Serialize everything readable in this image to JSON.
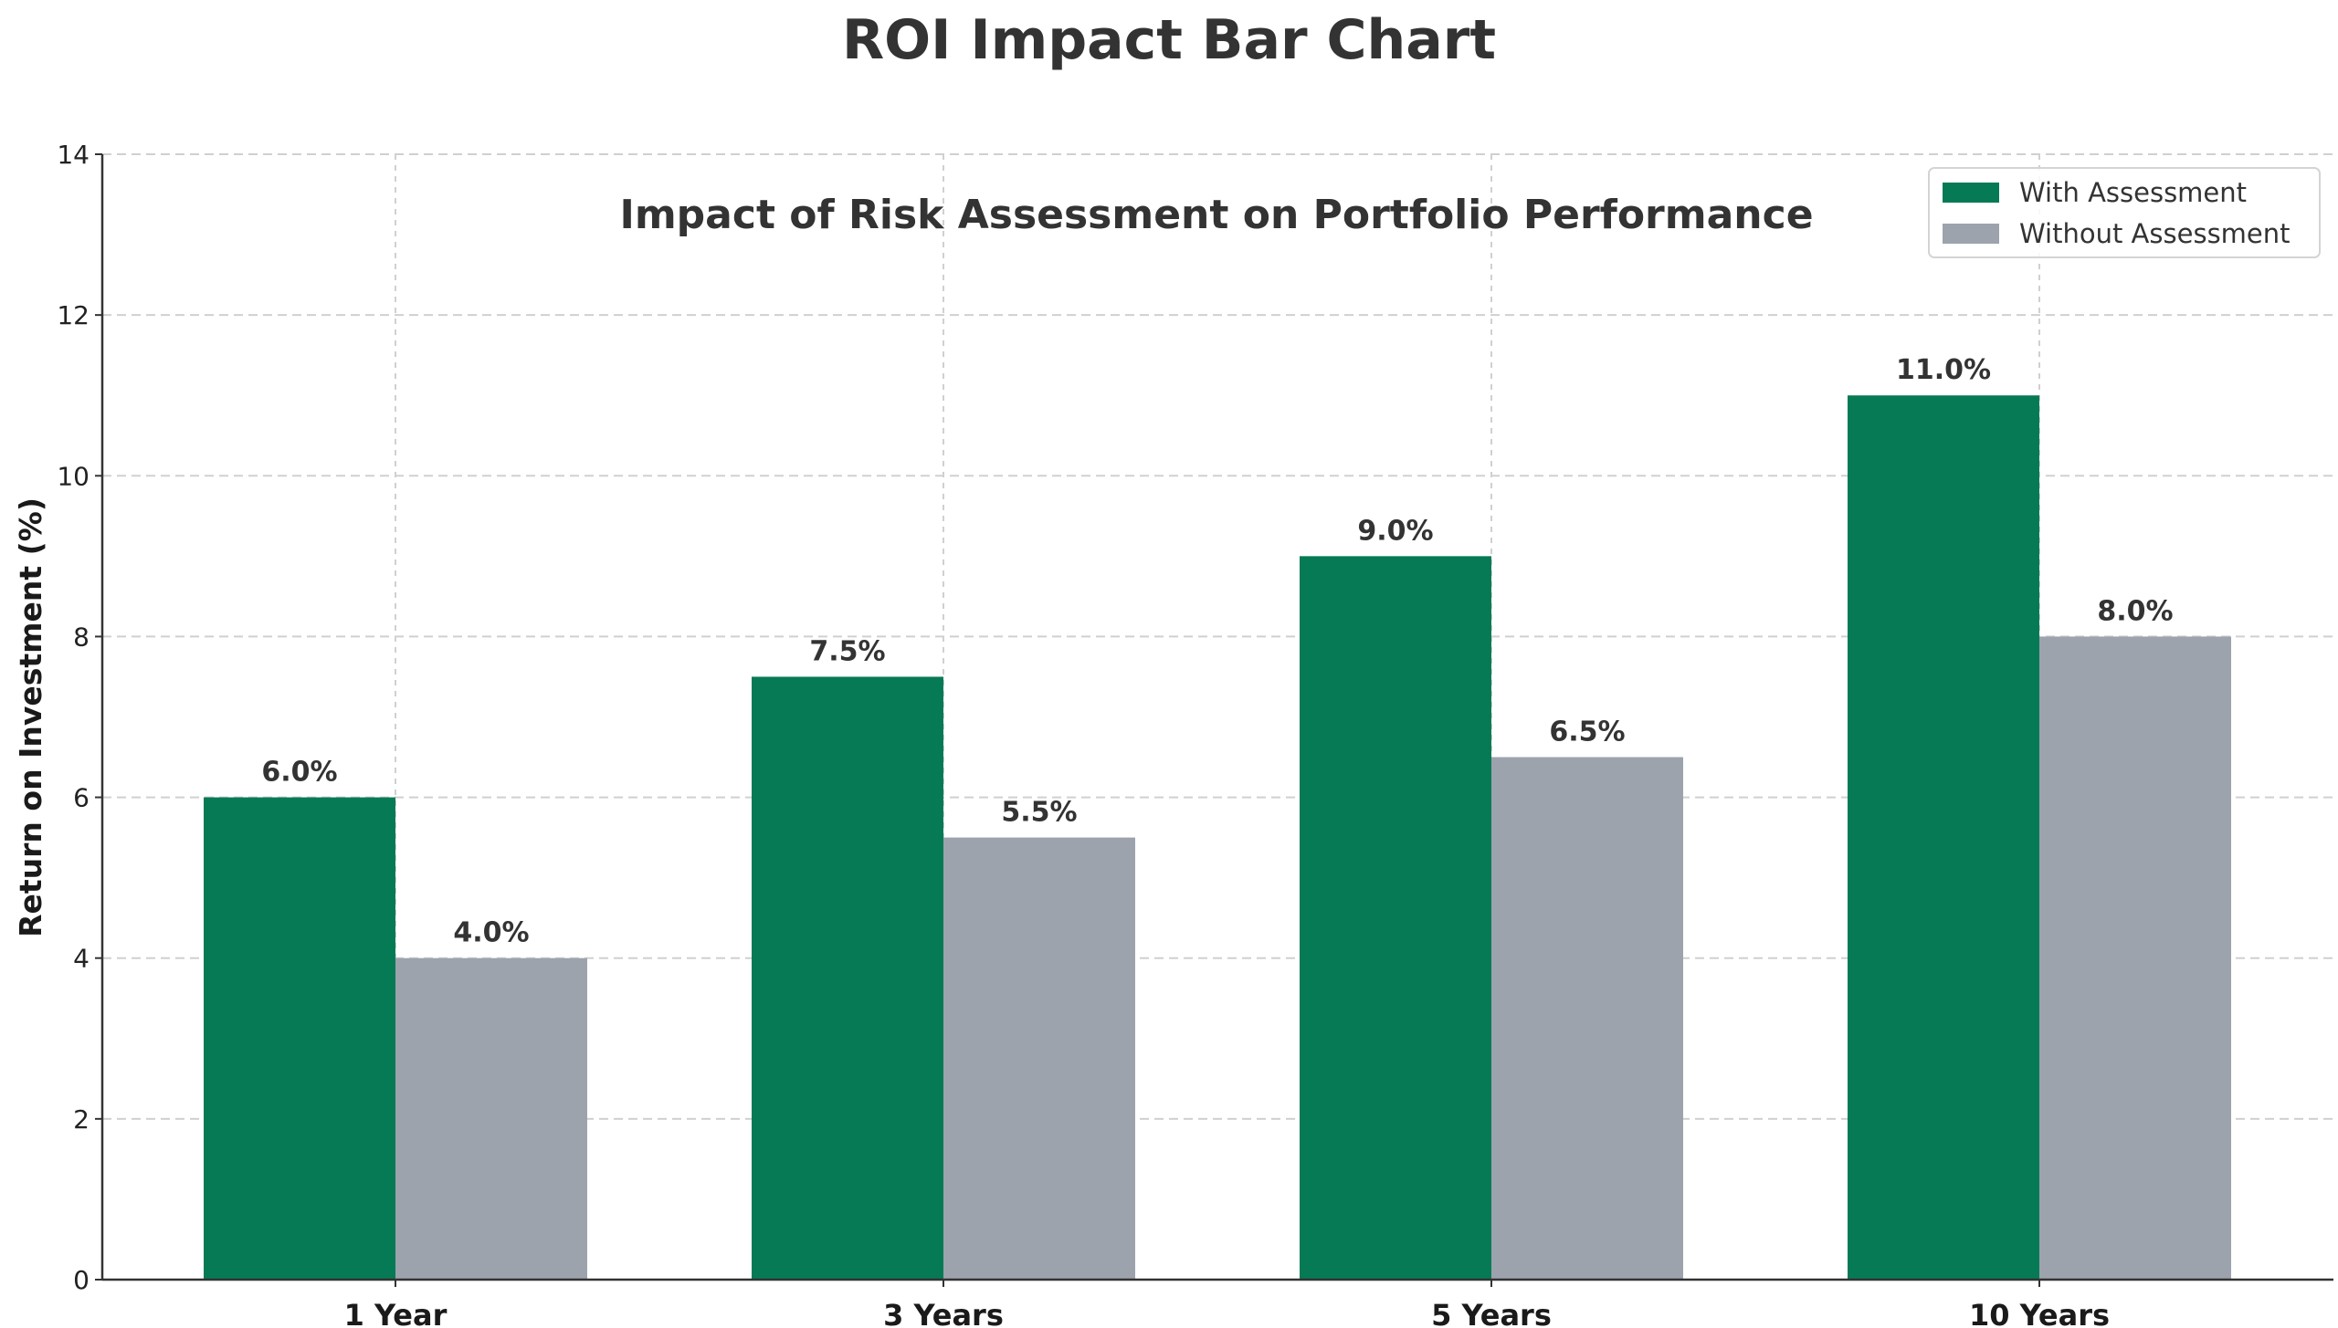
{
  "chart_data": {
    "type": "bar",
    "title": "ROI Impact Bar Chart",
    "subtitle": "Impact of Risk Assessment on Portfolio Performance",
    "xlabel": "",
    "ylabel": "Return on Investment (%)",
    "categories": [
      "1 Year",
      "3 Years",
      "5 Years",
      "10 Years"
    ],
    "series": [
      {
        "name": "With Assessment",
        "values": [
          6.0,
          7.5,
          9.0,
          11.0
        ],
        "color": "#067a55",
        "labels": [
          "6.0%",
          "7.5%",
          "9.0%",
          "11.0%"
        ]
      },
      {
        "name": "Without Assessment",
        "values": [
          4.0,
          5.5,
          6.5,
          8.0
        ],
        "color": "#9ca3ad",
        "labels": [
          "4.0%",
          "5.5%",
          "6.5%",
          "8.0%"
        ]
      }
    ],
    "ylim": [
      0,
      14
    ],
    "yticks": [
      "0",
      "2",
      "4",
      "6",
      "8",
      "10",
      "12",
      "14"
    ],
    "grid": true,
    "legend_position": "top-right"
  }
}
